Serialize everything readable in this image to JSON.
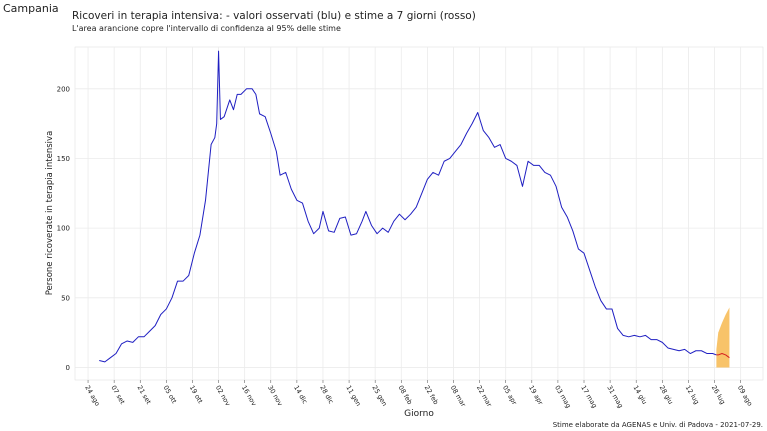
{
  "region": "Campania",
  "chart_data": {
    "type": "line",
    "title": "Ricoveri in terapia intensiva: - valori osservati (blu) e stime a 7 giorni (rosso)",
    "subtitle": "L'area arancione copre l'intervallo di confidenza al 95% delle stime",
    "x_label": "Giorno",
    "y_label": "Persone ricoverate in terapia intensiva",
    "caption": "Stime elaborate da AGENAS e Univ. di Padova - 2021-07-29.",
    "grid": true,
    "ylim": [
      -9,
      230
    ],
    "yticks": [
      0,
      50,
      100,
      150,
      200
    ],
    "xticks": [
      "24 ago",
      "07 set",
      "21 set",
      "05 ott",
      "19 ott",
      "02 nov",
      "16 nov",
      "30 nov",
      "14 dic",
      "28 dic",
      "11 gen",
      "25 gen",
      "08 feb",
      "22 feb",
      "08 mar",
      "22 mar",
      "05 apr",
      "19 apr",
      "03 mag",
      "17 mag",
      "31 mag",
      "14 giu",
      "28 giu",
      "12 lug",
      "26 lug",
      "09 ago"
    ],
    "x": [
      "30 ago",
      "02 set",
      "05 set",
      "08 set",
      "11 set",
      "14 set",
      "17 set",
      "20 set",
      "23 set",
      "26 set",
      "29 set",
      "02 ott",
      "05 ott",
      "08 ott",
      "11 ott",
      "14 ott",
      "17 ott",
      "20 ott",
      "23 ott",
      "26 ott",
      "29 ott",
      "31 ott",
      "01 nov",
      "02 nov",
      "03 nov",
      "05 nov",
      "08 nov",
      "10 nov",
      "12 nov",
      "14 nov",
      "17 nov",
      "20 nov",
      "22 nov",
      "24 nov",
      "27 nov",
      "30 nov",
      "03 dic",
      "05 dic",
      "08 dic",
      "11 dic",
      "14 dic",
      "17 dic",
      "20 dic",
      "23 dic",
      "26 dic",
      "28 dic",
      "31 dic",
      "03 gen",
      "06 gen",
      "09 gen",
      "12 gen",
      "15 gen",
      "18 gen",
      "20 gen",
      "23 gen",
      "26 gen",
      "29 gen",
      "01 feb",
      "04 feb",
      "07 feb",
      "10 feb",
      "13 feb",
      "16 feb",
      "19 feb",
      "22 feb",
      "25 feb",
      "28 feb",
      "03 mar",
      "06 mar",
      "09 mar",
      "12 mar",
      "15 mar",
      "18 mar",
      "21 mar",
      "24 mar",
      "27 mar",
      "30 mar",
      "02 apr",
      "05 apr",
      "08 apr",
      "11 apr",
      "14 apr",
      "17 apr",
      "20 apr",
      "23 apr",
      "26 apr",
      "29 apr",
      "02 mag",
      "05 mag",
      "08 mag",
      "11 mag",
      "14 mag",
      "17 mag",
      "20 mag",
      "23 mag",
      "26 mag",
      "29 mag",
      "01 giu",
      "04 giu",
      "07 giu",
      "10 giu",
      "13 giu",
      "16 giu",
      "19 giu",
      "22 giu",
      "25 giu",
      "28 giu",
      "01 lug",
      "04 lug",
      "07 lug",
      "10 lug",
      "13 lug",
      "16 lug",
      "19 lug",
      "22 lug",
      "25 lug",
      "27 lug",
      "28 lug",
      "30 lug",
      "01 ago",
      "03 ago"
    ],
    "series": [
      {
        "color": "#1f1fc2",
        "values": [
          5,
          4,
          7,
          10,
          17,
          19,
          18,
          22,
          22,
          26,
          30,
          38,
          42,
          50,
          62,
          62,
          66,
          82,
          95,
          120,
          160,
          165,
          175,
          227,
          178,
          180,
          192,
          185,
          196,
          196,
          200,
          200,
          196,
          182,
          180,
          168,
          155,
          138,
          140,
          128,
          120,
          118,
          105,
          96,
          100,
          112,
          98,
          97,
          107,
          108,
          95,
          96,
          105,
          112,
          102,
          96,
          100,
          97,
          105,
          110,
          106,
          110,
          115,
          125,
          135,
          140,
          138,
          148,
          150,
          155,
          160,
          168,
          175,
          183,
          170,
          165,
          158,
          160,
          150,
          148,
          145,
          130,
          148,
          145,
          145,
          140,
          138,
          130,
          115,
          108,
          98,
          85,
          82,
          70,
          58,
          48,
          42,
          42,
          28,
          23,
          22,
          23,
          22,
          23,
          20,
          20,
          18,
          14,
          13,
          12,
          13,
          10,
          12,
          12,
          10,
          10,
          9,
          null,
          null,
          null,
          null
        ]
      },
      {
        "color": "#d62020",
        "values": [
          null,
          null,
          null,
          null,
          null,
          null,
          null,
          null,
          null,
          null,
          null,
          null,
          null,
          null,
          null,
          null,
          null,
          null,
          null,
          null,
          null,
          null,
          null,
          null,
          null,
          null,
          null,
          null,
          null,
          null,
          null,
          null,
          null,
          null,
          null,
          null,
          null,
          null,
          null,
          null,
          null,
          null,
          null,
          null,
          null,
          null,
          null,
          null,
          null,
          null,
          null,
          null,
          null,
          null,
          null,
          null,
          null,
          null,
          null,
          null,
          null,
          null,
          null,
          null,
          null,
          null,
          null,
          null,
          null,
          null,
          null,
          null,
          null,
          null,
          null,
          null,
          null,
          null,
          null,
          null,
          null,
          null,
          null,
          null,
          null,
          null,
          null,
          null,
          null,
          null,
          null,
          null,
          null,
          null,
          null,
          null,
          null,
          null,
          null,
          null,
          null,
          null,
          null,
          null,
          null,
          null,
          null,
          null,
          null,
          null,
          null,
          null,
          null,
          null,
          null,
          null,
          9,
          9,
          10,
          9,
          7
        ]
      }
    ],
    "band": {
      "color": "#f7b84f",
      "lower": [
        null,
        null,
        null,
        null,
        null,
        null,
        null,
        null,
        null,
        null,
        null,
        null,
        null,
        null,
        null,
        null,
        null,
        null,
        null,
        null,
        null,
        null,
        null,
        null,
        null,
        null,
        null,
        null,
        null,
        null,
        null,
        null,
        null,
        null,
        null,
        null,
        null,
        null,
        null,
        null,
        null,
        null,
        null,
        null,
        null,
        null,
        null,
        null,
        null,
        null,
        null,
        null,
        null,
        null,
        null,
        null,
        null,
        null,
        null,
        null,
        null,
        null,
        null,
        null,
        null,
        null,
        null,
        null,
        null,
        null,
        null,
        null,
        null,
        null,
        null,
        null,
        null,
        null,
        null,
        null,
        null,
        null,
        null,
        null,
        null,
        null,
        null,
        null,
        null,
        null,
        null,
        null,
        null,
        null,
        null,
        null,
        null,
        null,
        null,
        null,
        null,
        null,
        null,
        null,
        null,
        null,
        null,
        null,
        null,
        null,
        null,
        null,
        null,
        null,
        null,
        null,
        0,
        0,
        0,
        0,
        0
      ],
      "upper": [
        null,
        null,
        null,
        null,
        null,
        null,
        null,
        null,
        null,
        null,
        null,
        null,
        null,
        null,
        null,
        null,
        null,
        null,
        null,
        null,
        null,
        null,
        null,
        null,
        null,
        null,
        null,
        null,
        null,
        null,
        null,
        null,
        null,
        null,
        null,
        null,
        null,
        null,
        null,
        null,
        null,
        null,
        null,
        null,
        null,
        null,
        null,
        null,
        null,
        null,
        null,
        null,
        null,
        null,
        null,
        null,
        null,
        null,
        null,
        null,
        null,
        null,
        null,
        null,
        null,
        null,
        null,
        null,
        null,
        null,
        null,
        null,
        null,
        null,
        null,
        null,
        null,
        null,
        null,
        null,
        null,
        null,
        null,
        null,
        null,
        null,
        null,
        null,
        null,
        null,
        null,
        null,
        null,
        null,
        null,
        null,
        null,
        null,
        null,
        null,
        null,
        null,
        null,
        null,
        null,
        null,
        null,
        null,
        null,
        null,
        null,
        null,
        null,
        null,
        null,
        null,
        13,
        25,
        32,
        38,
        43
      ]
    }
  }
}
